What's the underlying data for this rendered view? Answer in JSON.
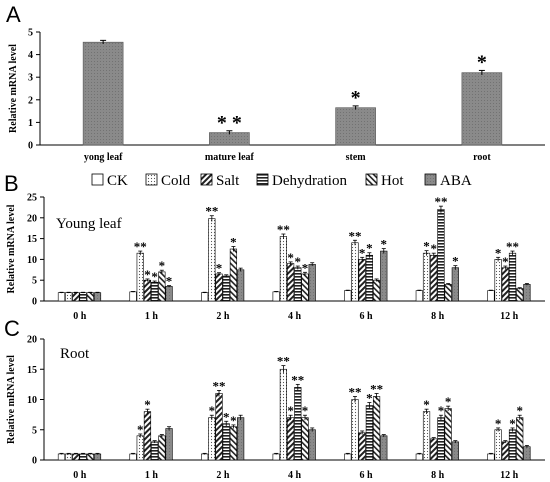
{
  "panels": {
    "a": {
      "letter": "A"
    },
    "b": {
      "letter": "B",
      "inset": "Young leaf"
    },
    "c": {
      "letter": "C",
      "inset": "Root"
    }
  },
  "legend": [
    "CK",
    "Cold",
    "Salt",
    "Dehydration",
    "Hot",
    "ABA"
  ],
  "colors": {
    "bar_gray": "#7a7a7a",
    "axis": "#000000",
    "pattern_ink": "#222222"
  },
  "chart_data": [
    {
      "id": "A",
      "type": "bar",
      "categories": [
        "yong leaf",
        "mature leaf",
        "stem",
        "root"
      ],
      "values": [
        4.55,
        0.55,
        1.65,
        3.2
      ],
      "errors": [
        0.08,
        0.08,
        0.08,
        0.1
      ],
      "significance": [
        "",
        "* *",
        "*",
        "*"
      ],
      "ylabel": "Relative mRNA level",
      "ylim": [
        0,
        5
      ],
      "yticks": [
        0,
        1,
        2,
        3,
        4,
        5
      ]
    },
    {
      "id": "B",
      "type": "bar",
      "title": "Young leaf",
      "categories": [
        "0 h",
        "1 h",
        "2 h",
        "4 h",
        "6 h",
        "8 h",
        "12 h"
      ],
      "ylabel": "Relative mRNA level",
      "ylim": [
        0,
        25
      ],
      "yticks": [
        0,
        5,
        10,
        15,
        20,
        25
      ],
      "series": [
        {
          "name": "CK",
          "values": [
            2,
            2.2,
            2,
            2.2,
            2.5,
            2.5,
            2.5
          ],
          "errors": [
            0.1,
            0.1,
            0.1,
            0.1,
            0.1,
            0.1,
            0.1
          ],
          "significance": [
            "",
            "",
            "",
            "",
            "",
            "",
            ""
          ]
        },
        {
          "name": "Cold",
          "values": [
            2,
            11.5,
            19.8,
            15.5,
            14,
            11.5,
            10
          ],
          "errors": [
            0.1,
            0.5,
            0.7,
            0.6,
            0.6,
            0.6,
            0.5
          ],
          "significance": [
            "",
            "**",
            "**",
            "**",
            "**",
            "*",
            "*"
          ]
        },
        {
          "name": "Salt",
          "values": [
            2,
            5,
            6.5,
            9,
            10,
            11,
            8
          ],
          "errors": [
            0.1,
            0.3,
            0.3,
            0.4,
            0.5,
            0.5,
            0.4
          ],
          "significance": [
            "",
            "*",
            "*",
            "*",
            "*",
            "*",
            "*"
          ]
        },
        {
          "name": "Dehydration",
          "values": [
            2,
            4.5,
            6,
            8,
            11,
            22,
            11.5
          ],
          "errors": [
            0.1,
            0.3,
            0.3,
            0.4,
            0.6,
            0.8,
            0.5
          ],
          "significance": [
            "",
            "*",
            "",
            "*",
            "*",
            "**",
            "**"
          ]
        },
        {
          "name": "Hot",
          "values": [
            2,
            7,
            12.5,
            6.5,
            5,
            4,
            3
          ],
          "errors": [
            0.1,
            0.4,
            0.6,
            0.4,
            0.3,
            0.2,
            0.2
          ],
          "significance": [
            "",
            "*",
            "*",
            "*",
            "",
            "",
            ""
          ]
        },
        {
          "name": "ABA",
          "values": [
            2,
            3.5,
            7.5,
            8.8,
            12,
            8,
            4
          ],
          "errors": [
            0.1,
            0.2,
            0.4,
            0.4,
            0.6,
            0.5,
            0.2
          ],
          "significance": [
            "",
            "*",
            "",
            "",
            "*",
            "*",
            ""
          ]
        }
      ]
    },
    {
      "id": "C",
      "type": "bar",
      "title": "Root",
      "categories": [
        "0 h",
        "1 h",
        "2 h",
        "4 h",
        "6 h",
        "8 h",
        "12 h"
      ],
      "ylabel": "Relative mRNA level",
      "ylim": [
        0,
        20
      ],
      "yticks": [
        0,
        5,
        10,
        15,
        20
      ],
      "series": [
        {
          "name": "CK",
          "values": [
            1,
            1,
            1,
            1,
            1,
            1,
            1
          ],
          "errors": [
            0.1,
            0.1,
            0.1,
            0.1,
            0.1,
            0.1,
            0.1
          ],
          "significance": [
            "",
            "",
            "",
            "",
            "",
            "",
            ""
          ]
        },
        {
          "name": "Cold",
          "values": [
            1,
            4,
            7,
            15,
            10,
            8,
            5
          ],
          "errors": [
            0.1,
            0.3,
            0.4,
            0.6,
            0.5,
            0.4,
            0.3
          ],
          "significance": [
            "",
            "*",
            "*",
            "**",
            "**",
            "*",
            "*"
          ]
        },
        {
          "name": "Salt",
          "values": [
            1,
            8,
            11,
            7,
            4.5,
            3.5,
            3
          ],
          "errors": [
            0.1,
            0.4,
            0.5,
            0.4,
            0.3,
            0.2,
            0.2
          ],
          "significance": [
            "",
            "*",
            "**",
            "*",
            "",
            "",
            ""
          ]
        },
        {
          "name": "Dehydration",
          "values": [
            1,
            3,
            6,
            12,
            9,
            7,
            5
          ],
          "errors": [
            0.1,
            0.2,
            0.4,
            0.5,
            0.5,
            0.4,
            0.3
          ],
          "significance": [
            "",
            "",
            "*",
            "**",
            "*",
            "*",
            "*"
          ]
        },
        {
          "name": "Hot",
          "values": [
            1,
            4,
            5.5,
            7,
            10.5,
            8.5,
            7
          ],
          "errors": [
            0.1,
            0.2,
            0.3,
            0.4,
            0.5,
            0.4,
            0.4
          ],
          "significance": [
            "",
            "",
            "*",
            "*",
            "**",
            "*",
            "*"
          ]
        },
        {
          "name": "ABA",
          "values": [
            1,
            5.2,
            7,
            5,
            4,
            3,
            2.2
          ],
          "errors": [
            0.1,
            0.3,
            0.4,
            0.3,
            0.2,
            0.2,
            0.2
          ],
          "significance": [
            "",
            "",
            "",
            "",
            "",
            "",
            ""
          ]
        }
      ]
    }
  ]
}
